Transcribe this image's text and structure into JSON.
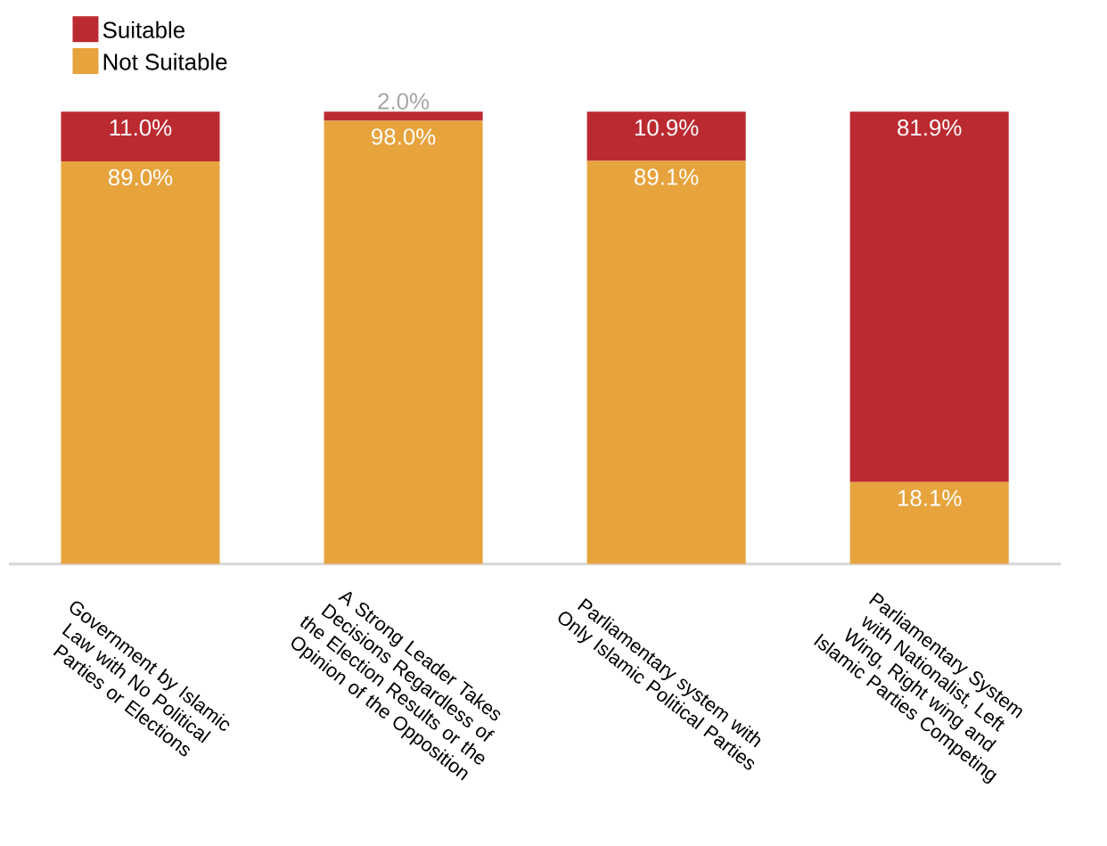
{
  "chart_data": {
    "type": "bar",
    "stacked": true,
    "categories": [
      "Government by Islamic Law with No Political Parties or Elections",
      "A Strong Leader Takes Decisions Regardless of the Election Results or the Opinion of the Opposition",
      "Parliamentary system with Only Islamic Political Parties",
      "Parliamentary System with Nationalist, Left Wing, Right wing and Islamic Parties Competing"
    ],
    "series": [
      {
        "name": "Not  Suitable",
        "color": "#e7a33c",
        "values": [
          89.0,
          98.0,
          89.1,
          18.1
        ],
        "value_labels": [
          "89.0%",
          "98.0%",
          "89.1%",
          "18.1%"
        ]
      },
      {
        "name": "Suitable",
        "color": "#bc2a31",
        "values": [
          11.0,
          2.0,
          10.9,
          81.9
        ],
        "value_labels": [
          "11.0%",
          "2.0%",
          "10.9%",
          "81.9%"
        ]
      }
    ],
    "legend": "top left"
  }
}
